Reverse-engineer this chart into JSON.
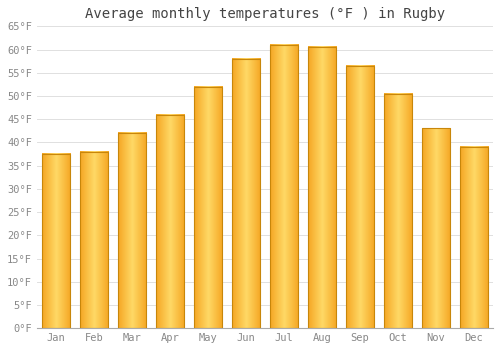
{
  "title": "Average monthly temperatures (°F ) in Rugby",
  "months": [
    "Jan",
    "Feb",
    "Mar",
    "Apr",
    "May",
    "Jun",
    "Jul",
    "Aug",
    "Sep",
    "Oct",
    "Nov",
    "Dec"
  ],
  "values": [
    37.5,
    38.0,
    42.0,
    46.0,
    52.0,
    58.0,
    61.0,
    60.5,
    56.5,
    50.5,
    43.0,
    39.0
  ],
  "bar_color_left": "#F5A623",
  "bar_color_center": "#FFD966",
  "bar_color_right": "#F5A623",
  "bar_edge_color": "#C8860A",
  "ylim": [
    0,
    65
  ],
  "yticks": [
    0,
    5,
    10,
    15,
    20,
    25,
    30,
    35,
    40,
    45,
    50,
    55,
    60,
    65
  ],
  "ytick_labels": [
    "0°F",
    "5°F",
    "10°F",
    "15°F",
    "20°F",
    "25°F",
    "30°F",
    "35°F",
    "40°F",
    "45°F",
    "50°F",
    "55°F",
    "60°F",
    "65°F"
  ],
  "bg_color": "#FFFFFF",
  "grid_color": "#E0E0E0",
  "title_fontsize": 10,
  "tick_fontsize": 7.5,
  "bar_width": 0.75
}
